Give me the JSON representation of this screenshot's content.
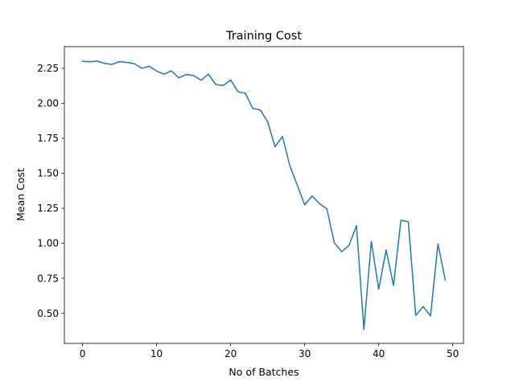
{
  "chart_data": {
    "type": "line",
    "title": "Training Cost",
    "xlabel": "No of Batches",
    "ylabel": "Mean Cost",
    "xlim": [
      -2.45,
      51.45
    ],
    "ylim": [
      0.285,
      2.405
    ],
    "xticks": [
      0,
      10,
      20,
      30,
      40,
      50
    ],
    "xtick_labels": [
      "0",
      "10",
      "20",
      "30",
      "40",
      "50"
    ],
    "yticks": [
      0.5,
      0.75,
      1.0,
      1.25,
      1.5,
      1.75,
      2.0,
      2.25
    ],
    "ytick_labels": [
      "0.50",
      "0.75",
      "1.00",
      "1.25",
      "1.50",
      "1.75",
      "2.00",
      "2.25"
    ],
    "grid": false,
    "series": [
      {
        "color": "#1f77b4",
        "x": [
          0,
          1,
          2,
          3,
          4,
          5,
          6,
          7,
          8,
          9,
          10,
          11,
          12,
          13,
          14,
          15,
          16,
          17,
          18,
          19,
          20,
          21,
          22,
          23,
          24,
          25,
          26,
          27,
          28,
          29,
          30,
          31,
          32,
          33,
          34,
          35,
          36,
          37,
          38,
          39,
          40,
          41,
          42,
          43,
          44,
          45,
          46,
          47,
          48,
          49
        ],
        "values": [
          2.3,
          2.297,
          2.302,
          2.285,
          2.278,
          2.298,
          2.292,
          2.283,
          2.251,
          2.265,
          2.231,
          2.208,
          2.232,
          2.182,
          2.206,
          2.199,
          2.165,
          2.208,
          2.134,
          2.128,
          2.167,
          2.083,
          2.071,
          1.963,
          1.953,
          1.869,
          1.689,
          1.764,
          1.553,
          1.416,
          1.275,
          1.338,
          1.284,
          1.246,
          1.005,
          0.94,
          0.986,
          1.126,
          0.385,
          1.013,
          0.672,
          0.953,
          0.699,
          1.164,
          1.154,
          0.485,
          0.548,
          0.481,
          0.995,
          0.736
        ]
      }
    ]
  }
}
